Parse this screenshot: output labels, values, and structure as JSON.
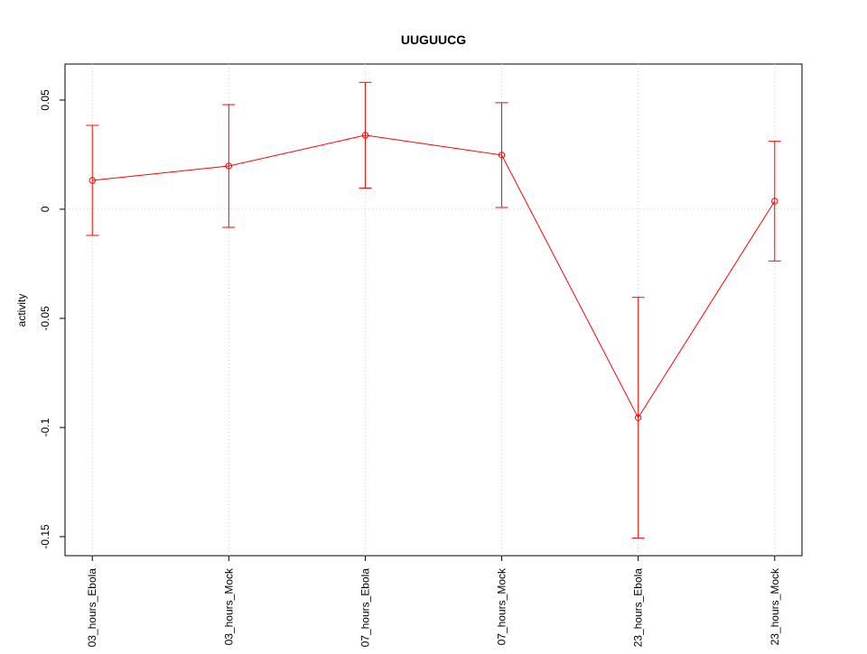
{
  "chart_data": {
    "type": "line",
    "title": "UUGUUCG",
    "y_label": "activity",
    "categories": [
      "03_hours_Ebola",
      "03_hours_Mock",
      "07_hours_Ebola",
      "07_hours_Mock",
      "23_hours_Ebola",
      "23_hours_Mock"
    ],
    "series": [
      {
        "color": "#ff0000",
        "values": [
          0.0132,
          0.0198,
          0.0339,
          0.0248,
          -0.0955,
          0.0037
        ],
        "errors": [
          0.0252,
          0.0281,
          0.0242,
          0.024,
          0.0551,
          0.0274
        ]
      }
    ],
    "ylim": [
      -0.1587,
      0.0665
    ],
    "yticks": [
      -0.15,
      -0.1,
      -0.05,
      0,
      0.05
    ],
    "reference_line": 0,
    "grid": true
  }
}
